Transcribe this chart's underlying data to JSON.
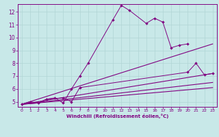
{
  "background_color": "#c8e8e8",
  "grid_color": "#b0d4d4",
  "line_color": "#800080",
  "xlabel": "Windchill (Refroidissement éolien,°C)",
  "xlabel_color": "#800080",
  "tick_color": "#800080",
  "xlim": [
    -0.5,
    23.5
  ],
  "ylim": [
    4.6,
    12.6
  ],
  "xticks": [
    0,
    1,
    2,
    3,
    4,
    5,
    6,
    7,
    8,
    9,
    10,
    11,
    12,
    13,
    14,
    15,
    16,
    17,
    18,
    19,
    20,
    21,
    22,
    23
  ],
  "yticks": [
    5,
    6,
    7,
    8,
    9,
    10,
    11,
    12
  ],
  "lines": [
    {
      "x": [
        0,
        1,
        2,
        3,
        4,
        5,
        6,
        7,
        8,
        11,
        12,
        13,
        15,
        16,
        17,
        18,
        19,
        20
      ],
      "y": [
        4.8,
        5.0,
        4.9,
        5.2,
        5.3,
        4.9,
        6.0,
        7.0,
        8.0,
        11.4,
        12.5,
        12.1,
        11.1,
        11.5,
        11.2,
        9.2,
        9.4,
        9.5
      ],
      "has_markers": true
    },
    {
      "x": [
        0,
        2,
        3,
        5,
        6,
        7,
        20,
        21,
        22,
        23
      ],
      "y": [
        4.8,
        4.9,
        5.2,
        5.3,
        5.0,
        6.1,
        7.3,
        8.0,
        7.1,
        7.2
      ],
      "has_markers": true
    },
    {
      "x": [
        0,
        23
      ],
      "y": [
        4.8,
        9.5
      ],
      "has_markers": false
    },
    {
      "x": [
        0,
        23
      ],
      "y": [
        4.8,
        7.2
      ],
      "has_markers": false
    },
    {
      "x": [
        0,
        23
      ],
      "y": [
        4.8,
        6.5
      ],
      "has_markers": false
    },
    {
      "x": [
        0,
        23
      ],
      "y": [
        4.8,
        6.1
      ],
      "has_markers": false
    }
  ]
}
